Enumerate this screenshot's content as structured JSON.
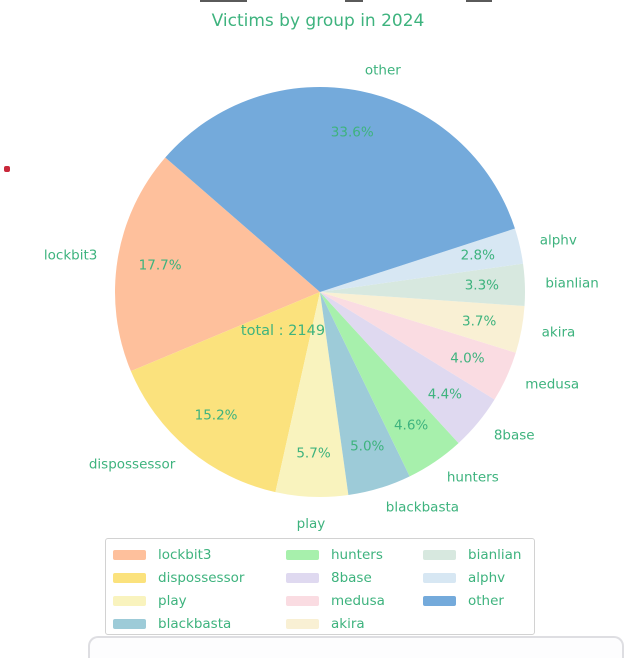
{
  "text_color": "#3eb37e",
  "legend_border_color": "#d2d2d2",
  "chart_data": {
    "type": "pie",
    "title": "Victims by group in 2024",
    "total": 2149,
    "total_label": "total : 2149",
    "start_angle_deg": 139,
    "direction": "counterclockwise",
    "legend_position": "bottom",
    "slices": [
      {
        "label": "lockbit3",
        "pct": 17.7,
        "pct_label": "17.7%",
        "color": "#fec09c"
      },
      {
        "label": "dispossessor",
        "pct": 15.2,
        "pct_label": "15.2%",
        "color": "#fbe27d"
      },
      {
        "label": "play",
        "pct": 5.7,
        "pct_label": "5.7%",
        "color": "#f9f3be"
      },
      {
        "label": "blackbasta",
        "pct": 5.0,
        "pct_label": "5.0%",
        "color": "#9dcbd8"
      },
      {
        "label": "hunters",
        "pct": 4.6,
        "pct_label": "4.6%",
        "color": "#a7f0ac"
      },
      {
        "label": "8base",
        "pct": 4.4,
        "pct_label": "4.4%",
        "color": "#dfd9f0"
      },
      {
        "label": "medusa",
        "pct": 4.0,
        "pct_label": "4.0%",
        "color": "#fadce2"
      },
      {
        "label": "akira",
        "pct": 3.7,
        "pct_label": "3.7%",
        "color": "#f9f0d4"
      },
      {
        "label": "bianlian",
        "pct": 3.3,
        "pct_label": "3.3%",
        "color": "#d7e8df"
      },
      {
        "label": "alphv",
        "pct": 2.8,
        "pct_label": "2.8%",
        "color": "#d7e7f3"
      },
      {
        "label": "other",
        "pct": 33.6,
        "pct_label": "33.6%",
        "color": "#74aadb"
      }
    ],
    "legend": {
      "columns": [
        [
          "lockbit3",
          "dispossessor",
          "play",
          "blackbasta"
        ],
        [
          "hunters",
          "8base",
          "medusa",
          "akira"
        ],
        [
          "bianlian",
          "alphv",
          "other"
        ]
      ]
    }
  }
}
